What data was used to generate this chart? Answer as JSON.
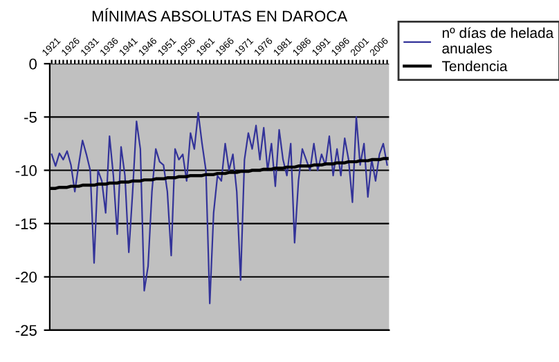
{
  "chart_data": {
    "type": "line",
    "title": "MÍNIMAS ABSOLUTAS EN DAROCA",
    "categories": [
      "1921",
      null,
      null,
      null,
      null,
      "1926",
      null,
      null,
      null,
      null,
      "1931",
      null,
      null,
      null,
      null,
      "1936",
      null,
      null,
      null,
      null,
      "1941",
      null,
      null,
      null,
      null,
      "1946",
      null,
      null,
      null,
      null,
      "1951",
      null,
      null,
      null,
      null,
      "1956",
      null,
      null,
      null,
      null,
      "1961",
      null,
      null,
      null,
      null,
      "1966",
      null,
      null,
      null,
      null,
      "1971",
      null,
      null,
      null,
      null,
      "1976",
      null,
      null,
      null,
      null,
      "1981",
      null,
      null,
      null,
      null,
      "1986",
      null,
      null,
      null,
      null,
      "1991",
      null,
      null,
      null,
      null,
      "1996",
      null,
      null,
      null,
      null,
      "2001",
      null,
      null,
      null,
      null,
      "2006",
      null,
      null
    ],
    "series": [
      {
        "name": "nº días de helada anuales",
        "color": "#333399",
        "values": [
          -8.5,
          -9.6,
          -8.4,
          -9.0,
          -8.2,
          -9.5,
          -12.0,
          -9.5,
          -7.2,
          -8.5,
          -10.0,
          -18.7,
          -10.0,
          -11.0,
          -14.0,
          -6.8,
          -10.5,
          -16.0,
          -7.8,
          -10.5,
          -17.7,
          -12.0,
          -5.4,
          -8.0,
          -21.3,
          -19.0,
          -12.0,
          -8.0,
          -9.2,
          -9.5,
          -12.0,
          -18.0,
          -8.0,
          -9.0,
          -8.5,
          -11.0,
          -6.5,
          -8.0,
          -4.6,
          -7.5,
          -10.0,
          -22.5,
          -14.0,
          -10.5,
          -11.0,
          -7.5,
          -10.0,
          -8.5,
          -12.0,
          -20.3,
          -9.0,
          -6.5,
          -8.0,
          -5.8,
          -9.0,
          -6.0,
          -10.0,
          -7.5,
          -11.5,
          -6.2,
          -9.0,
          -10.5,
          -7.5,
          -16.8,
          -11.0,
          -8.0,
          -9.0,
          -10.0,
          -7.5,
          -10.0,
          -8.5,
          -9.5,
          -6.8,
          -10.5,
          -8.0,
          -10.5,
          -7.0,
          -9.0,
          -13.0,
          -5.0,
          -9.5,
          -7.5,
          -12.5,
          -9.0,
          -11.0,
          -8.5,
          -7.5,
          -9.5
        ]
      },
      {
        "name": "Tendencia",
        "color": "#000000",
        "values": [
          -11.7,
          -11.7,
          -11.6,
          -11.6,
          -11.6,
          -11.5,
          -11.5,
          -11.5,
          -11.4,
          -11.4,
          -11.4,
          -11.4,
          -11.3,
          -11.3,
          -11.3,
          -11.2,
          -11.2,
          -11.2,
          -11.1,
          -11.1,
          -11.1,
          -11.0,
          -11.0,
          -11.0,
          -10.9,
          -10.9,
          -10.9,
          -10.8,
          -10.8,
          -10.8,
          -10.7,
          -10.7,
          -10.7,
          -10.6,
          -10.6,
          -10.6,
          -10.5,
          -10.5,
          -10.5,
          -10.5,
          -10.4,
          -10.4,
          -10.4,
          -10.3,
          -10.3,
          -10.3,
          -10.2,
          -10.2,
          -10.2,
          -10.1,
          -10.1,
          -10.1,
          -10.0,
          -10.0,
          -10.0,
          -9.9,
          -9.9,
          -9.9,
          -9.8,
          -9.8,
          -9.8,
          -9.7,
          -9.7,
          -9.7,
          -9.6,
          -9.6,
          -9.6,
          -9.6,
          -9.5,
          -9.5,
          -9.5,
          -9.4,
          -9.4,
          -9.4,
          -9.3,
          -9.3,
          -9.3,
          -9.2,
          -9.2,
          -9.2,
          -9.1,
          -9.1,
          -9.1,
          -9.0,
          -9.0,
          -9.0,
          -8.9,
          -8.9
        ]
      }
    ],
    "ylim": [
      -25,
      0
    ],
    "yticks": [
      -25,
      -20,
      -15,
      -10,
      -5,
      0
    ],
    "grid": "y",
    "legend": "top right"
  }
}
